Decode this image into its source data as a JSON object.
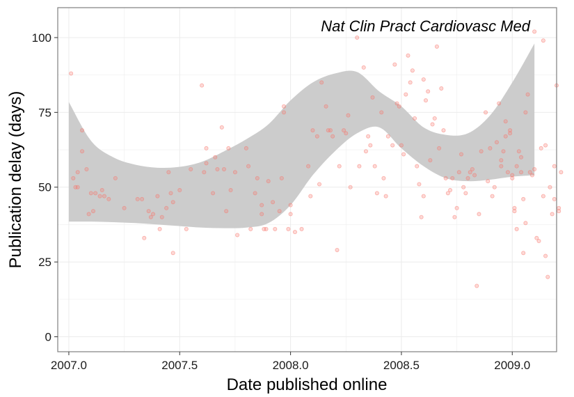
{
  "chart_data": {
    "type": "scatter",
    "title": "",
    "annotation": "Nat Clin Pract Cardiovasc Med",
    "xlabel": "Date published online",
    "ylabel": "Publication delay (days)",
    "xlim": [
      2006.95,
      2009.2
    ],
    "ylim": [
      -5,
      110
    ],
    "xticks": [
      2007.0,
      2007.5,
      2008.0,
      2008.5,
      2009.0
    ],
    "xtick_labels": [
      "2007.0",
      "2007.5",
      "2008.0",
      "2008.5",
      "2009.0"
    ],
    "yticks": [
      0,
      25,
      50,
      75,
      100
    ],
    "ytick_labels": [
      "0",
      "25",
      "50",
      "75",
      "100"
    ],
    "grid": true,
    "colors": {
      "points": "#f8766d",
      "band": "#cccccc",
      "grid": "#ebebeb",
      "frame": "#7f7f7f"
    },
    "points": [
      [
        2007.01,
        88
      ],
      [
        2007.02,
        53
      ],
      [
        2007.03,
        50
      ],
      [
        2007.04,
        55
      ],
      [
        2007.04,
        50
      ],
      [
        2007.06,
        69
      ],
      [
        2007.06,
        62
      ],
      [
        2007.08,
        56
      ],
      [
        2007.09,
        41
      ],
      [
        2007.1,
        48
      ],
      [
        2007.11,
        42
      ],
      [
        2007.12,
        48
      ],
      [
        2007.14,
        47
      ],
      [
        2007.15,
        49
      ],
      [
        2007.16,
        47
      ],
      [
        2007.18,
        46
      ],
      [
        2007.21,
        53
      ],
      [
        2007.25,
        43
      ],
      [
        2007.31,
        46
      ],
      [
        2007.33,
        46
      ],
      [
        2007.34,
        33
      ],
      [
        2007.36,
        42
      ],
      [
        2007.37,
        40
      ],
      [
        2007.38,
        41
      ],
      [
        2007.4,
        47
      ],
      [
        2007.41,
        36
      ],
      [
        2007.42,
        40
      ],
      [
        2007.44,
        43
      ],
      [
        2007.45,
        55
      ],
      [
        2007.46,
        48
      ],
      [
        2007.47,
        45
      ],
      [
        2007.47,
        28
      ],
      [
        2007.5,
        49
      ],
      [
        2007.53,
        36
      ],
      [
        2007.55,
        56
      ],
      [
        2007.6,
        84
      ],
      [
        2007.61,
        55
      ],
      [
        2007.62,
        63
      ],
      [
        2007.62,
        58
      ],
      [
        2007.65,
        48
      ],
      [
        2007.66,
        60
      ],
      [
        2007.67,
        56
      ],
      [
        2007.69,
        70
      ],
      [
        2007.7,
        56
      ],
      [
        2007.71,
        42
      ],
      [
        2007.72,
        63
      ],
      [
        2007.73,
        49
      ],
      [
        2007.75,
        55
      ],
      [
        2007.76,
        34
      ],
      [
        2007.8,
        63
      ],
      [
        2007.81,
        57
      ],
      [
        2007.82,
        36
      ],
      [
        2007.84,
        48
      ],
      [
        2007.85,
        53
      ],
      [
        2007.87,
        44
      ],
      [
        2007.87,
        41
      ],
      [
        2007.88,
        36
      ],
      [
        2007.89,
        36
      ],
      [
        2007.9,
        52
      ],
      [
        2007.92,
        45
      ],
      [
        2007.93,
        36
      ],
      [
        2007.95,
        42
      ],
      [
        2007.96,
        53
      ],
      [
        2007.97,
        75
      ],
      [
        2007.97,
        77
      ],
      [
        2007.99,
        36
      ],
      [
        2008.0,
        44
      ],
      [
        2008.0,
        41
      ],
      [
        2008.02,
        35
      ],
      [
        2008.05,
        36
      ],
      [
        2008.08,
        57
      ],
      [
        2008.09,
        47
      ],
      [
        2008.1,
        69
      ],
      [
        2008.12,
        67
      ],
      [
        2008.13,
        51
      ],
      [
        2008.14,
        85
      ],
      [
        2008.16,
        77
      ],
      [
        2008.17,
        69
      ],
      [
        2008.18,
        69
      ],
      [
        2008.19,
        67
      ],
      [
        2008.21,
        29
      ],
      [
        2008.22,
        57
      ],
      [
        2008.24,
        69
      ],
      [
        2008.25,
        68
      ],
      [
        2008.26,
        74
      ],
      [
        2008.27,
        50
      ],
      [
        2008.3,
        100
      ],
      [
        2008.31,
        57
      ],
      [
        2008.33,
        90
      ],
      [
        2008.34,
        62
      ],
      [
        2008.35,
        67
      ],
      [
        2008.36,
        64
      ],
      [
        2008.37,
        80
      ],
      [
        2008.38,
        57
      ],
      [
        2008.39,
        48
      ],
      [
        2008.41,
        75
      ],
      [
        2008.42,
        53
      ],
      [
        2008.43,
        47
      ],
      [
        2008.44,
        67
      ],
      [
        2008.46,
        64
      ],
      [
        2008.47,
        91
      ],
      [
        2008.48,
        78
      ],
      [
        2008.49,
        77
      ],
      [
        2008.5,
        64
      ],
      [
        2008.51,
        61
      ],
      [
        2008.52,
        81
      ],
      [
        2008.53,
        94
      ],
      [
        2008.54,
        85
      ],
      [
        2008.55,
        89
      ],
      [
        2008.56,
        73
      ],
      [
        2008.57,
        57
      ],
      [
        2008.58,
        51
      ],
      [
        2008.59,
        40
      ],
      [
        2008.6,
        47
      ],
      [
        2008.6,
        86
      ],
      [
        2008.61,
        79
      ],
      [
        2008.62,
        82
      ],
      [
        2008.63,
        59
      ],
      [
        2008.64,
        71
      ],
      [
        2008.65,
        73
      ],
      [
        2008.66,
        97
      ],
      [
        2008.67,
        63
      ],
      [
        2008.68,
        83
      ],
      [
        2008.69,
        69
      ],
      [
        2008.7,
        53
      ],
      [
        2008.71,
        48
      ],
      [
        2008.72,
        49
      ],
      [
        2008.73,
        53
      ],
      [
        2008.74,
        40
      ],
      [
        2008.75,
        43
      ],
      [
        2008.76,
        55
      ],
      [
        2008.77,
        61
      ],
      [
        2008.78,
        50
      ],
      [
        2008.79,
        48
      ],
      [
        2008.8,
        53
      ],
      [
        2008.81,
        55
      ],
      [
        2008.82,
        56
      ],
      [
        2008.83,
        54
      ],
      [
        2008.84,
        17
      ],
      [
        2008.85,
        41
      ],
      [
        2008.86,
        62
      ],
      [
        2008.88,
        75
      ],
      [
        2008.89,
        52
      ],
      [
        2008.9,
        63
      ],
      [
        2008.91,
        47
      ],
      [
        2008.92,
        50
      ],
      [
        2008.93,
        65
      ],
      [
        2008.94,
        78
      ],
      [
        2008.95,
        59
      ],
      [
        2008.96,
        62
      ],
      [
        2008.97,
        72
      ],
      [
        2008.98,
        55
      ],
      [
        2008.99,
        69
      ],
      [
        2009.0,
        54
      ],
      [
        2009.01,
        43
      ],
      [
        2009.02,
        36
      ],
      [
        2009.03,
        62
      ],
      [
        2009.04,
        60
      ],
      [
        2009.05,
        28
      ],
      [
        2009.06,
        75
      ],
      [
        2008.95,
        57
      ],
      [
        2008.97,
        67
      ],
      [
        2008.99,
        68
      ],
      [
        2009.0,
        53
      ],
      [
        2009.01,
        42
      ],
      [
        2009.02,
        57
      ],
      [
        2009.04,
        55
      ],
      [
        2009.05,
        46
      ],
      [
        2009.06,
        38
      ],
      [
        2009.07,
        81
      ],
      [
        2009.08,
        55
      ],
      [
        2009.09,
        54
      ],
      [
        2009.1,
        56
      ],
      [
        2009.11,
        33
      ],
      [
        2009.12,
        32
      ],
      [
        2009.13,
        63
      ],
      [
        2009.14,
        47
      ],
      [
        2009.15,
        27
      ],
      [
        2009.15,
        64
      ],
      [
        2009.16,
        20
      ],
      [
        2009.17,
        50
      ],
      [
        2009.18,
        41
      ],
      [
        2009.19,
        57
      ],
      [
        2009.19,
        46
      ],
      [
        2009.2,
        84
      ],
      [
        2009.21,
        43
      ],
      [
        2009.21,
        42
      ],
      [
        2009.22,
        55
      ],
      [
        2009.1,
        102
      ],
      [
        2009.14,
        99
      ]
    ],
    "band_x": [
      2007.0,
      2007.1,
      2007.2,
      2007.3,
      2007.4,
      2007.5,
      2007.6,
      2007.7,
      2007.8,
      2007.9,
      2008.0,
      2008.1,
      2008.2,
      2008.3,
      2008.4,
      2008.5,
      2008.6,
      2008.7,
      2008.8,
      2008.9,
      2009.0,
      2009.1
    ],
    "band_upper": [
      78.5,
      65.5,
      60.0,
      57.5,
      56.5,
      56.8,
      58.5,
      62.0,
      66.0,
      71.0,
      79.0,
      85.0,
      88.0,
      88.5,
      82.0,
      77.0,
      70.0,
      67.5,
      68.0,
      74.0,
      85.0,
      98.0
    ],
    "band_lower": [
      38.5,
      38.5,
      38.3,
      38.0,
      37.5,
      37.0,
      36.5,
      36.3,
      36.5,
      38.0,
      44.0,
      54.0,
      62.0,
      68.0,
      70.0,
      63.0,
      57.0,
      53.0,
      52.0,
      52.5,
      53.5,
      54.0
    ]
  }
}
